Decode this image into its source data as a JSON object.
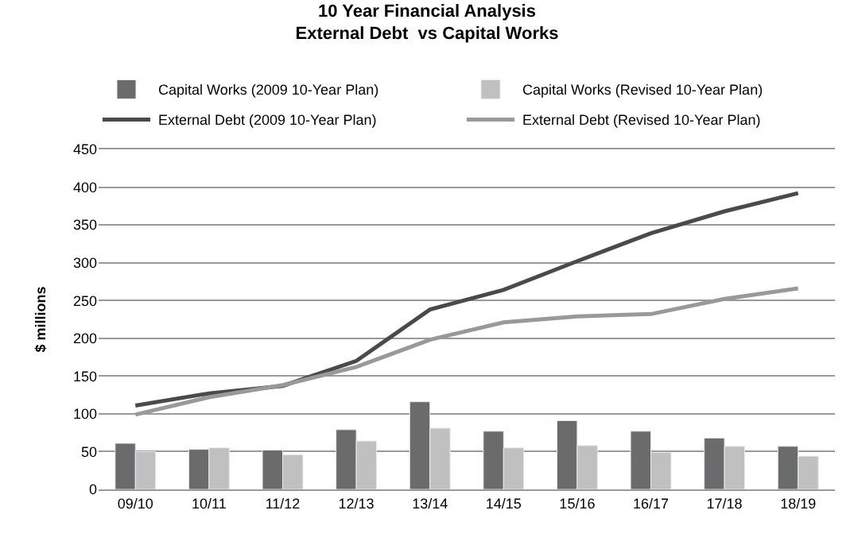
{
  "chart_data": {
    "type": "bar",
    "title": "10 Year Financial Analysis\nExternal Debt  vs Capital Works",
    "ylabel": "$ millions",
    "categories": [
      "09/10",
      "10/11",
      "11/12",
      "12/13",
      "13/14",
      "14/15",
      "15/16",
      "16/17",
      "17/18",
      "18/19"
    ],
    "series": [
      {
        "name": "Capital Works (2009 10-Year Plan)",
        "color": "#6b6b6b",
        "values": [
          61,
          53,
          52,
          79,
          116,
          77,
          91,
          77,
          68,
          57
        ]
      },
      {
        "name": "Capital Works (Revised 10-Year Plan)",
        "color": "#c0c0c0",
        "values": [
          50,
          55,
          46,
          64,
          81,
          55,
          58,
          49,
          57,
          44
        ]
      },
      {
        "name": "External Debt (2009 10-Year Plan)",
        "color": "#4a4a4a",
        "type": "line",
        "values": [
          111,
          127,
          137,
          170,
          238,
          264,
          302,
          339,
          368,
          392
        ]
      },
      {
        "name": "External Debt (Revised 10-Year Plan)",
        "color": "#999999",
        "type": "line",
        "values": [
          99,
          122,
          138,
          162,
          198,
          221,
          229,
          232,
          252,
          266
        ]
      }
    ],
    "ylim": [
      0,
      450
    ],
    "yticks": [
      0,
      50,
      100,
      150,
      200,
      250,
      300,
      350,
      400,
      450
    ],
    "grid": "y",
    "legend": "top",
    "marker": "none",
    "line_style": "solid"
  }
}
